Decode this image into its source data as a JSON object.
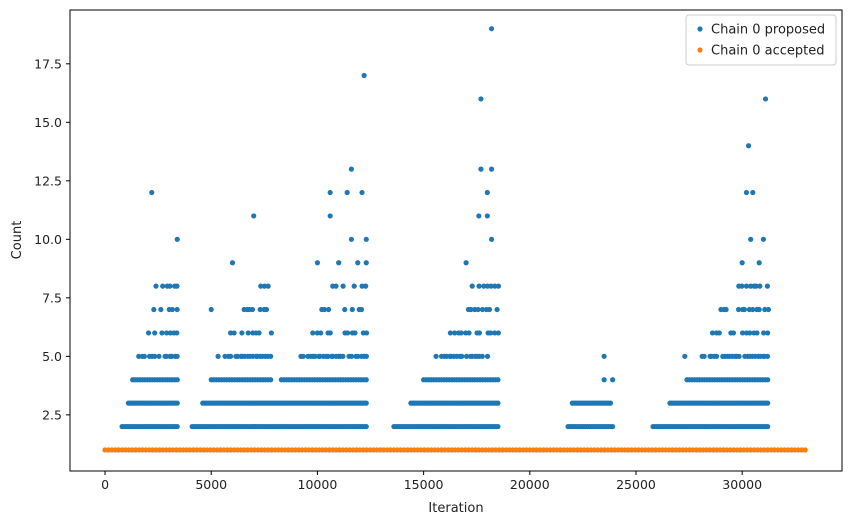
{
  "chart_data": {
    "type": "scatter",
    "title": "",
    "xlabel": "Iteration",
    "ylabel": "Count",
    "xlim": [
      -1650,
      34700
    ],
    "ylim": [
      0.1,
      19.8
    ],
    "xticks": [
      0,
      5000,
      10000,
      15000,
      20000,
      25000,
      30000
    ],
    "xtick_labels": [
      "0",
      "5000",
      "10000",
      "15000",
      "20000",
      "25000",
      "30000"
    ],
    "yticks": [
      2.5,
      5.0,
      7.5,
      10.0,
      12.5,
      15.0,
      17.5
    ],
    "ytick_labels": [
      "2.5",
      "5.0",
      "7.5",
      "10.0",
      "12.5",
      "15.0",
      "17.5"
    ],
    "grid": false,
    "legend_position": "top-right",
    "series": [
      {
        "name": "Chain 0 proposed",
        "color": "#1f77b4",
        "baseline": {
          "y": 1,
          "x_range": [
            0,
            33000
          ]
        },
        "bands": [
          {
            "y": 2,
            "ranges": [
              [
                800,
                3400
              ],
              [
                4100,
                12300
              ],
              [
                13600,
                18500
              ],
              [
                21800,
                23900
              ],
              [
                25800,
                31200
              ]
            ]
          },
          {
            "y": 3,
            "ranges": [
              [
                1100,
                3400
              ],
              [
                4600,
                12300
              ],
              [
                14400,
                18500
              ],
              [
                22000,
                23800
              ],
              [
                26600,
                31200
              ]
            ]
          },
          {
            "y": 4,
            "ranges": [
              [
                1300,
                3400
              ],
              [
                5000,
                7800
              ],
              [
                8300,
                12300
              ],
              [
                15000,
                18500
              ],
              [
                27400,
                31200
              ]
            ]
          },
          {
            "y": 5,
            "ranges": [
              [
                1600,
                3400
              ],
              [
                5300,
                7800
              ],
              [
                9200,
                12300
              ],
              [
                15600,
                18500
              ],
              [
                28100,
                31200
              ]
            ]
          },
          {
            "y": 6,
            "ranges": [
              [
                2000,
                3400
              ],
              [
                5900,
                7800
              ],
              [
                9800,
                12300
              ],
              [
                16300,
                18500
              ],
              [
                28600,
                31200
              ]
            ]
          },
          {
            "y": 7,
            "ranges": [
              [
                2300,
                3400
              ],
              [
                6500,
                7800
              ],
              [
                10200,
                12300
              ],
              [
                16900,
                18500
              ],
              [
                29100,
                31200
              ]
            ]
          },
          {
            "y": 8,
            "ranges": [
              [
                2400,
                3400
              ],
              [
                7300,
                7800
              ],
              [
                10700,
                12300
              ],
              [
                17300,
                18500
              ],
              [
                29700,
                31200
              ]
            ]
          }
        ],
        "points": [
          {
            "x": 2200,
            "y": 12
          },
          {
            "x": 3400,
            "y": 10
          },
          {
            "x": 5000,
            "y": 7
          },
          {
            "x": 6000,
            "y": 9
          },
          {
            "x": 7000,
            "y": 11
          },
          {
            "x": 10000,
            "y": 9
          },
          {
            "x": 10600,
            "y": 12
          },
          {
            "x": 10600,
            "y": 11
          },
          {
            "x": 11000,
            "y": 9
          },
          {
            "x": 11400,
            "y": 12
          },
          {
            "x": 11600,
            "y": 13
          },
          {
            "x": 11600,
            "y": 10
          },
          {
            "x": 11900,
            "y": 9
          },
          {
            "x": 12100,
            "y": 12
          },
          {
            "x": 12200,
            "y": 17
          },
          {
            "x": 12300,
            "y": 10
          },
          {
            "x": 12300,
            "y": 9
          },
          {
            "x": 17000,
            "y": 9
          },
          {
            "x": 17600,
            "y": 11
          },
          {
            "x": 17700,
            "y": 16
          },
          {
            "x": 17700,
            "y": 13
          },
          {
            "x": 18000,
            "y": 11
          },
          {
            "x": 18000,
            "y": 12
          },
          {
            "x": 18200,
            "y": 13
          },
          {
            "x": 18200,
            "y": 19
          },
          {
            "x": 18200,
            "y": 10
          },
          {
            "x": 23500,
            "y": 5
          },
          {
            "x": 23500,
            "y": 4
          },
          {
            "x": 23900,
            "y": 4
          },
          {
            "x": 27300,
            "y": 5
          },
          {
            "x": 29000,
            "y": 7
          },
          {
            "x": 30000,
            "y": 9
          },
          {
            "x": 30200,
            "y": 12
          },
          {
            "x": 30300,
            "y": 14
          },
          {
            "x": 30400,
            "y": 10
          },
          {
            "x": 30500,
            "y": 12
          },
          {
            "x": 30800,
            "y": 9
          },
          {
            "x": 31000,
            "y": 10
          },
          {
            "x": 31100,
            "y": 16
          }
        ]
      },
      {
        "name": "Chain 0 accepted",
        "color": "#ff7f0e",
        "baseline": {
          "y": 1,
          "x_range": [
            0,
            33000
          ]
        },
        "bands": [],
        "points": []
      }
    ]
  }
}
